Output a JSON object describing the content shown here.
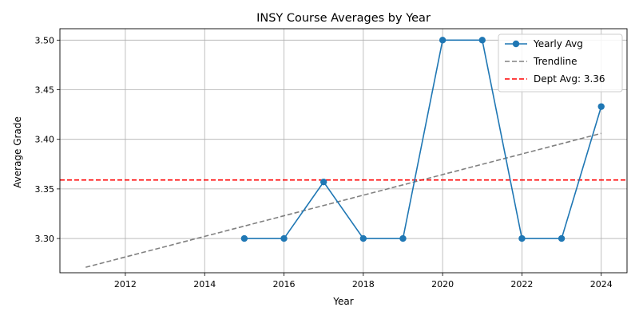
{
  "chart_data": {
    "type": "line",
    "title": "INSY Course Averages by Year",
    "xlabel": "Year",
    "ylabel": "Average Grade",
    "xlim": [
      2010.35,
      2024.65
    ],
    "ylim": [
      3.2655,
      3.5115
    ],
    "xticks": [
      2012,
      2014,
      2016,
      2018,
      2020,
      2022,
      2024
    ],
    "xtick_labels": [
      "2012",
      "2014",
      "2016",
      "2018",
      "2020",
      "2022",
      "2024"
    ],
    "yticks": [
      3.3,
      3.35,
      3.4,
      3.45,
      3.5
    ],
    "ytick_labels": [
      "3.30",
      "3.35",
      "3.40",
      "3.45",
      "3.50"
    ],
    "grid": true,
    "legend_position": "top-right",
    "series": [
      {
        "name": "Yearly Avg",
        "style": "line-with-markers",
        "color": "#1f77b4",
        "x": [
          2015,
          2016,
          2017,
          2018,
          2019,
          2020,
          2021,
          2022,
          2023,
          2024
        ],
        "y": [
          3.3,
          3.3,
          3.357,
          3.3,
          3.3,
          3.5,
          3.5,
          3.3,
          3.3,
          3.433
        ]
      },
      {
        "name": "Trendline",
        "style": "dashed",
        "color": "#808080",
        "x": [
          2011,
          2024
        ],
        "y": [
          3.271,
          3.406
        ]
      },
      {
        "name": "Dept Avg: 3.36",
        "style": "dashed-horizontal",
        "color": "#ff0000",
        "y": 3.359
      }
    ]
  }
}
